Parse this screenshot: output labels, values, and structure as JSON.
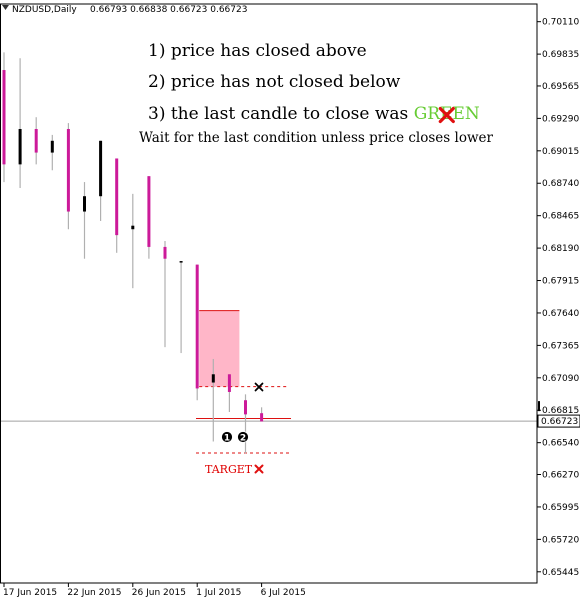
{
  "header": {
    "symbol": "NZDUSD,Daily",
    "ohlc": "0.66793 0.66838 0.66723 0.66723"
  },
  "annotations": {
    "line1": "1) price has closed above",
    "line2": "2) price has not closed below",
    "line3_prefix": "3) the last candle to close was ",
    "line3_word": "GREEN",
    "line4": "Wait for the last condition unless price closes lower",
    "target": "TARGET",
    "marker1": "1",
    "marker2": "2"
  },
  "colors": {
    "bull": "#000000",
    "bear": "#cc1a99",
    "wick": "#b0b0b0",
    "zone_fill": "#ffb6c8",
    "zone_line": "#dd1010",
    "green_word": "#66cc33",
    "cross": "#e01010",
    "current_price_line": "#a0a0a0"
  },
  "chart_data": {
    "type": "candlestick",
    "symbol": "NZDUSD",
    "timeframe": "Daily",
    "ylim": [
      0.6535,
      0.7026
    ],
    "y_ticks": [
      0.7011,
      0.69835,
      0.69565,
      0.6929,
      0.69015,
      0.6874,
      0.68465,
      0.6819,
      0.67915,
      0.6764,
      0.67365,
      0.6709,
      0.66815,
      0.6654,
      0.6627,
      0.65995,
      0.6572,
      0.65445
    ],
    "y_tick_labels": [
      "0.70110",
      "0.69835",
      "0.69565",
      "0.69290",
      "0.69015",
      "0.68740",
      "0.68465",
      "0.68190",
      "0.67915",
      "0.67640",
      "0.67365",
      "0.67090",
      "0.66815",
      "0.66540",
      "0.66270",
      "0.65995",
      "0.65720",
      "0.65445"
    ],
    "x_labels": [
      {
        "label": "17 Jun 2015",
        "index": 0
      },
      {
        "label": "22 Jun 2015",
        "index": 4
      },
      {
        "label": "26 Jun 2015",
        "index": 8
      },
      {
        "label": "1 Jul 2015",
        "index": 12
      },
      {
        "label": "6 Jul 2015",
        "index": 16
      }
    ],
    "candles": [
      {
        "o": 0.697,
        "h": 0.6985,
        "l": 0.6875,
        "c": 0.689
      },
      {
        "o": 0.689,
        "h": 0.698,
        "l": 0.687,
        "c": 0.692
      },
      {
        "o": 0.692,
        "h": 0.693,
        "l": 0.689,
        "c": 0.69
      },
      {
        "o": 0.69,
        "h": 0.6915,
        "l": 0.6885,
        "c": 0.691
      },
      {
        "o": 0.692,
        "h": 0.6925,
        "l": 0.6835,
        "c": 0.685
      },
      {
        "o": 0.685,
        "h": 0.6875,
        "l": 0.681,
        "c": 0.6863
      },
      {
        "o": 0.6863,
        "h": 0.691,
        "l": 0.6842,
        "c": 0.691
      },
      {
        "o": 0.6895,
        "h": 0.6895,
        "l": 0.6815,
        "c": 0.683
      },
      {
        "o": 0.6835,
        "h": 0.6865,
        "l": 0.6785,
        "c": 0.6838
      },
      {
        "o": 0.688,
        "h": 0.688,
        "l": 0.681,
        "c": 0.682
      },
      {
        "o": 0.682,
        "h": 0.6825,
        "l": 0.6735,
        "c": 0.681
      },
      {
        "o": 0.6808,
        "h": 0.6808,
        "l": 0.673,
        "c": 0.6808
      },
      {
        "o": 0.6805,
        "h": 0.6805,
        "l": 0.669,
        "c": 0.67
      },
      {
        "o": 0.6705,
        "h": 0.6725,
        "l": 0.6655,
        "c": 0.6712
      },
      {
        "o": 0.6712,
        "h": 0.6712,
        "l": 0.668,
        "c": 0.6697
      },
      {
        "o": 0.669,
        "h": 0.6695,
        "l": 0.6645,
        "c": 0.6678
      },
      {
        "o": 0.6679,
        "h": 0.6684,
        "l": 0.6672,
        "c": 0.6672
      }
    ],
    "zone": {
      "from_index": 12,
      "to_index": 14,
      "top": 0.6766,
      "bottom": 0.67015
    },
    "levels": {
      "upper_dashed": 0.67015,
      "solid": 0.66745,
      "target": 0.66452,
      "current": 0.66723
    },
    "current_price_label": "0.66723"
  }
}
